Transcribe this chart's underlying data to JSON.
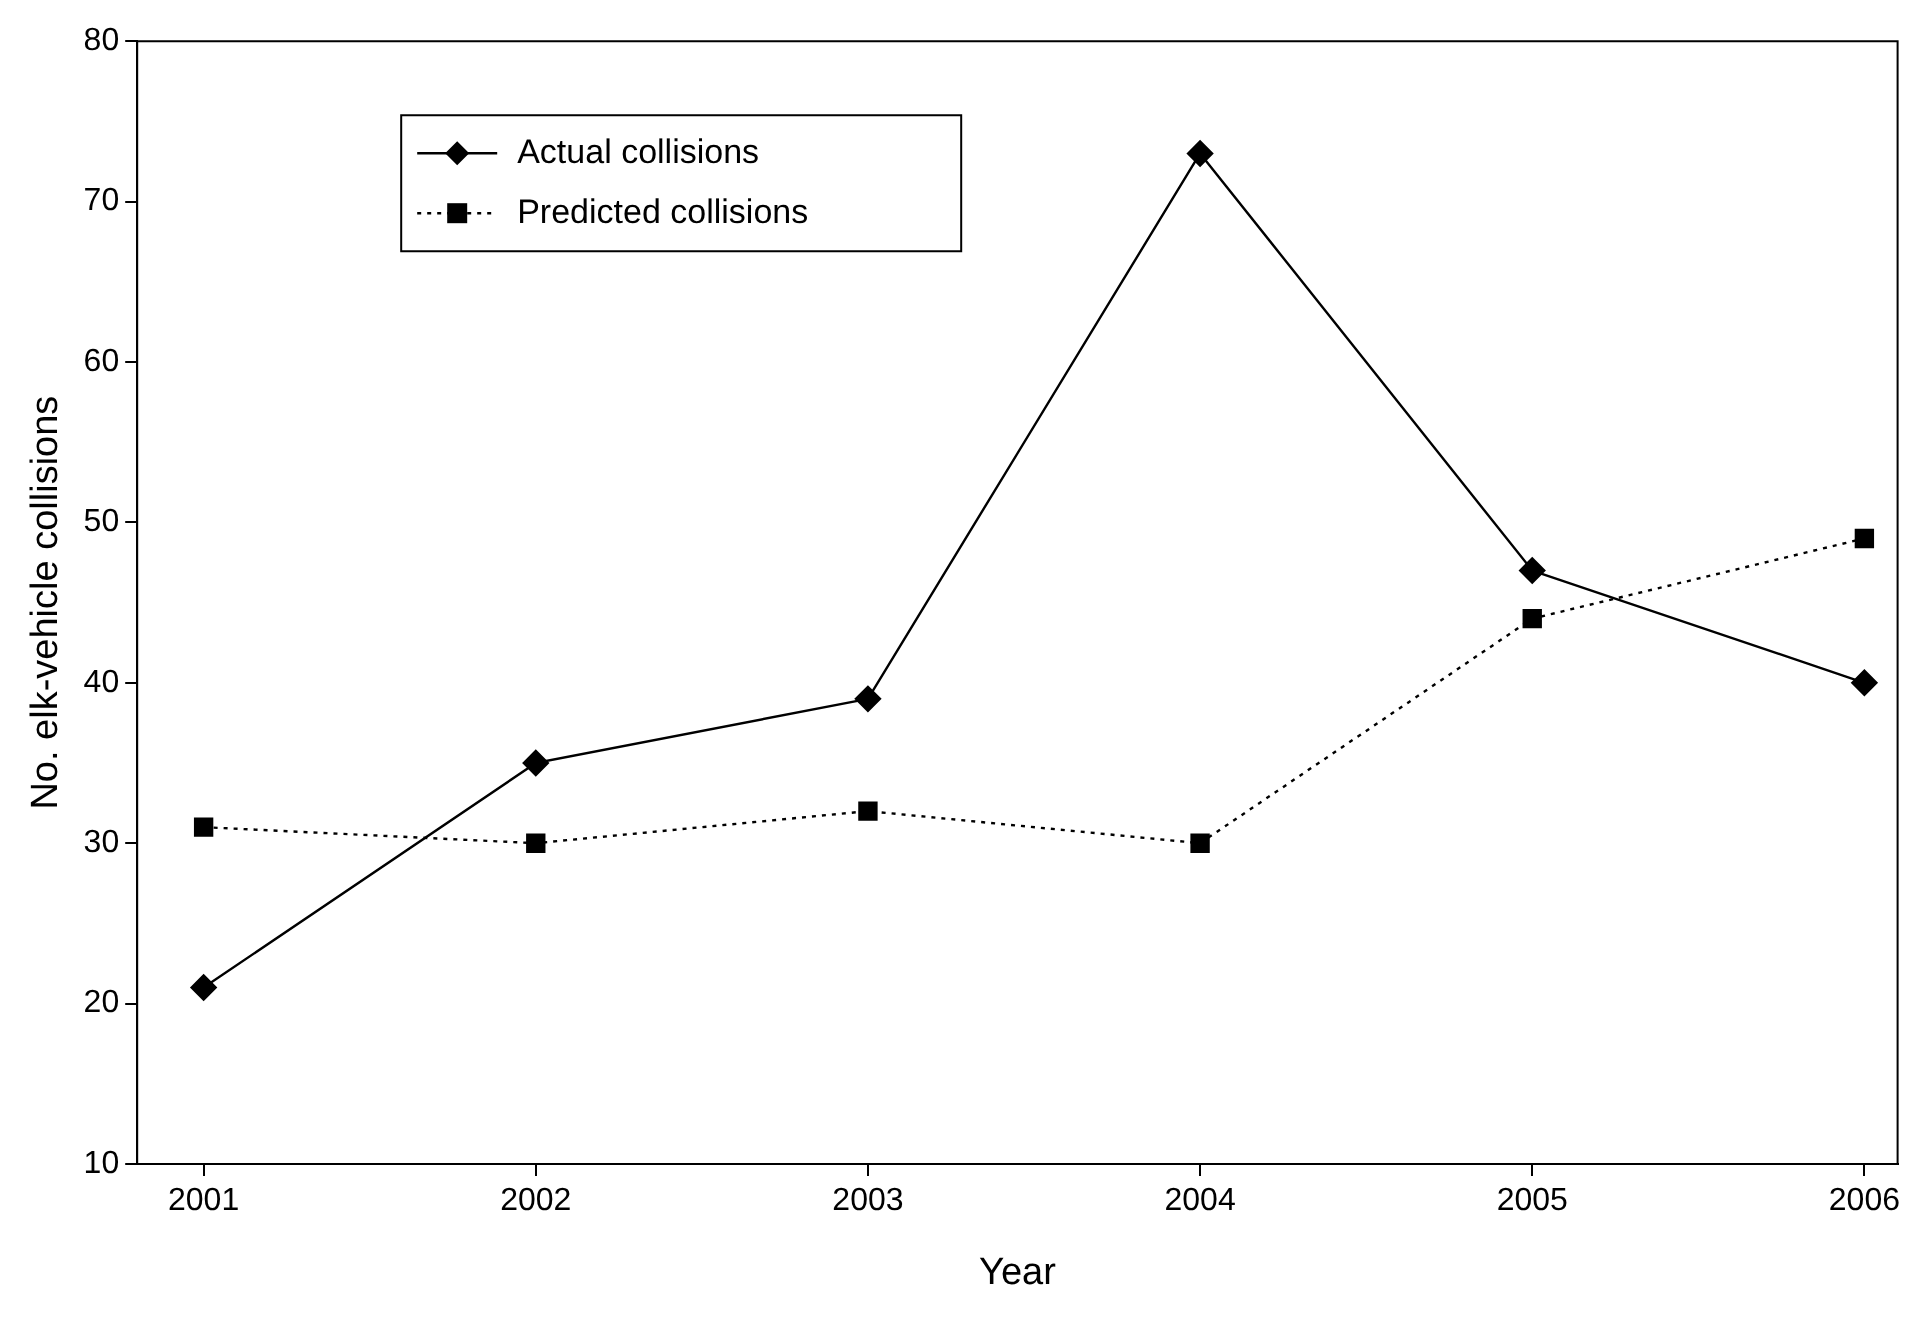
{
  "chart_data": {
    "type": "line",
    "xlabel": "Year",
    "ylabel": "No. elk-vehicle collisions",
    "x": [
      2001,
      2002,
      2003,
      2004,
      2005,
      2006
    ],
    "series": [
      {
        "name": "Actual collisions",
        "color": "#000000",
        "marker": "diamond",
        "line_style": "solid",
        "values": [
          21,
          35,
          39,
          73,
          47,
          40
        ]
      },
      {
        "name": "Predicted collisions",
        "color": "#000000",
        "marker": "square",
        "line_style": "dotted",
        "values": [
          31,
          30,
          32,
          30,
          44,
          49
        ]
      }
    ],
    "xlim": [
      2000.8,
      2006.1
    ],
    "xticks": [
      2001,
      2002,
      2003,
      2004,
      2005,
      2006
    ],
    "ylim": [
      10,
      80
    ],
    "yticks": [
      10,
      20,
      30,
      40,
      50,
      60,
      70,
      80
    ],
    "grid": false,
    "legend": "top left"
  }
}
